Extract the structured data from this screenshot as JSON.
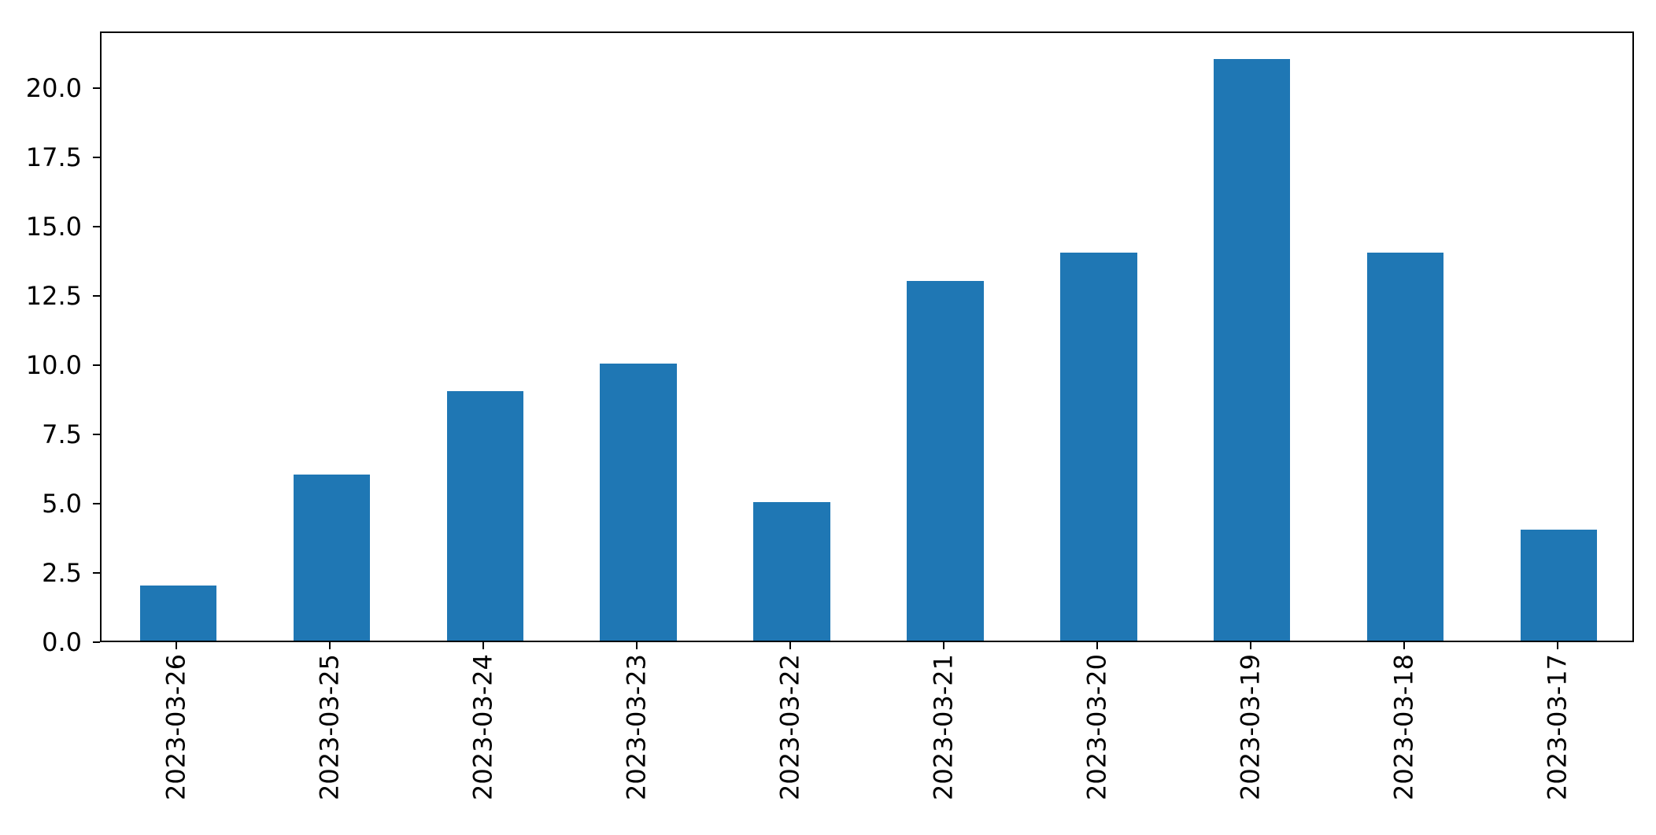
{
  "chart_data": {
    "type": "bar",
    "title": "",
    "xlabel": "",
    "ylabel": "",
    "categories": [
      "2023-03-26",
      "2023-03-25",
      "2023-03-24",
      "2023-03-23",
      "2023-03-22",
      "2023-03-21",
      "2023-03-20",
      "2023-03-19",
      "2023-03-18",
      "2023-03-17"
    ],
    "values": [
      2,
      6,
      9,
      10,
      5,
      13,
      14,
      21,
      14,
      4
    ],
    "ylim": [
      0,
      22.05
    ],
    "ytick_labels": [
      "0.0",
      "2.5",
      "5.0",
      "7.5",
      "10.0",
      "12.5",
      "15.0",
      "17.5",
      "20.0"
    ],
    "xtick_rotation_degrees": 90,
    "bar_color": "#1f77b4",
    "axis_color": "#000000",
    "background_color": "#ffffff",
    "grid": false,
    "legend": null,
    "bar_width_fraction": 0.5
  }
}
